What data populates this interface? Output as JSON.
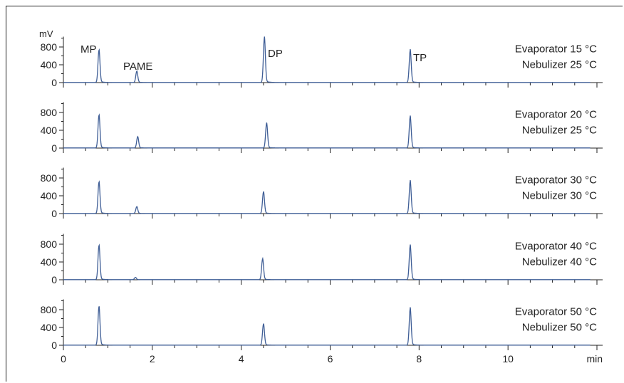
{
  "chart_data": {
    "type": "line",
    "x_unit": "min",
    "y_unit": "mV",
    "xlim": [
      0,
      12
    ],
    "ylim": [
      0,
      1000
    ],
    "x_ticks": [
      0,
      2,
      4,
      6,
      8,
      10
    ],
    "y_ticks": [
      0,
      400,
      800
    ],
    "peak_labels": [
      {
        "text": "MP",
        "panel": 0,
        "x": 0.8,
        "y": 720
      },
      {
        "text": "PAME",
        "panel": 0,
        "x": 1.65,
        "y": 250
      },
      {
        "text": "DP",
        "panel": 0,
        "x": 4.52,
        "y": 1000
      },
      {
        "text": "TP",
        "panel": 0,
        "x": 7.8,
        "y": 720
      }
    ],
    "series": [
      {
        "evaporator": "Evaporator 15 °C",
        "nebulizer": "Nebulizer 25 °C",
        "peaks": [
          {
            "compound": "MP",
            "x": 0.8,
            "y": 720
          },
          {
            "compound": "PAME",
            "x": 1.65,
            "y": 250
          },
          {
            "compound": "DP",
            "x": 4.52,
            "y": 1000
          },
          {
            "compound": "TP",
            "x": 7.8,
            "y": 720
          }
        ]
      },
      {
        "evaporator": "Evaporator 20 °C",
        "nebulizer": "Nebulizer 25 °C",
        "peaks": [
          {
            "compound": "MP",
            "x": 0.8,
            "y": 730
          },
          {
            "compound": "PAME",
            "x": 1.67,
            "y": 250
          },
          {
            "compound": "DP",
            "x": 4.57,
            "y": 550
          },
          {
            "compound": "TP",
            "x": 7.8,
            "y": 700
          }
        ]
      },
      {
        "evaporator": "Evaporator 30 °C",
        "nebulizer": "Nebulizer 30 °C",
        "peaks": [
          {
            "compound": "MP",
            "x": 0.8,
            "y": 700
          },
          {
            "compound": "PAME",
            "x": 1.65,
            "y": 150
          },
          {
            "compound": "DP",
            "x": 4.5,
            "y": 480
          },
          {
            "compound": "TP",
            "x": 7.8,
            "y": 720
          }
        ]
      },
      {
        "evaporator": "Evaporator 40 °C",
        "nebulizer": "Nebulizer 40 °C",
        "peaks": [
          {
            "compound": "MP",
            "x": 0.8,
            "y": 760
          },
          {
            "compound": "PAME",
            "x": 1.62,
            "y": 50
          },
          {
            "compound": "DP",
            "x": 4.48,
            "y": 460
          },
          {
            "compound": "TP",
            "x": 7.8,
            "y": 760
          }
        ]
      },
      {
        "evaporator": "Evaporator 50 °C",
        "nebulizer": "Nebulizer 50 °C",
        "peaks": [
          {
            "compound": "MP",
            "x": 0.8,
            "y": 860
          },
          {
            "compound": "DP",
            "x": 4.5,
            "y": 470
          },
          {
            "compound": "TP",
            "x": 7.8,
            "y": 820
          }
        ]
      }
    ]
  }
}
